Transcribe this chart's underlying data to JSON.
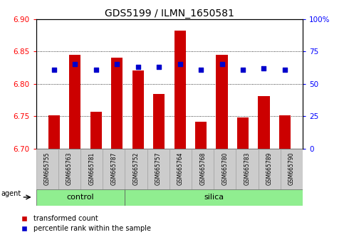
{
  "title": "GDS5199 / ILMN_1650581",
  "samples": [
    "GSM665755",
    "GSM665763",
    "GSM665781",
    "GSM665787",
    "GSM665752",
    "GSM665757",
    "GSM665764",
    "GSM665768",
    "GSM665780",
    "GSM665783",
    "GSM665789",
    "GSM665790"
  ],
  "bar_values": [
    6.751,
    6.845,
    6.757,
    6.84,
    6.82,
    6.784,
    6.882,
    6.742,
    6.845,
    6.748,
    6.781,
    6.751
  ],
  "percentile_values": [
    61,
    65,
    61,
    65,
    63,
    63,
    65,
    61,
    65,
    61,
    62,
    61
  ],
  "bar_color": "#cc0000",
  "dot_color": "#0000cc",
  "ylim_left": [
    6.7,
    6.9
  ],
  "ylim_right": [
    0,
    100
  ],
  "yticks_left": [
    6.7,
    6.75,
    6.8,
    6.85,
    6.9
  ],
  "yticks_right": [
    0,
    25,
    50,
    75,
    100
  ],
  "ytick_labels_right": [
    "0",
    "25",
    "50",
    "75",
    "100%"
  ],
  "n_control": 4,
  "n_silica": 8,
  "control_color": "#90ee90",
  "silica_color": "#90ee90",
  "agent_label": "agent",
  "control_label": "control",
  "silica_label": "silica",
  "bar_width": 0.55,
  "grid_color": "black",
  "background_color": "#ffffff",
  "tick_label_bg": "#cccccc",
  "legend_red_label": "transformed count",
  "legend_blue_label": "percentile rank within the sample",
  "title_fontsize": 10,
  "tick_fontsize": 7.5,
  "sample_fontsize": 5.5,
  "group_fontsize": 8
}
